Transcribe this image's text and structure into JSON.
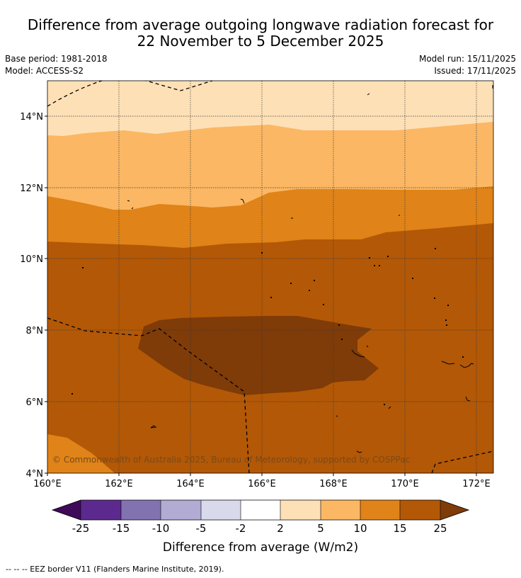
{
  "title_line1": "Difference from average outgoing longwave radiation forecast for",
  "title_line2": "22 November to 5 December 2025",
  "base_period": "Base period: 1981-2018",
  "model": "Model: ACCESS-S2",
  "model_run": "Model run: 15/11/2025",
  "issued": "Issued: 17/11/2025",
  "lat_labels": [
    "14°N",
    "12°N",
    "10°N",
    "8°N",
    "6°N",
    "4°N"
  ],
  "lon_labels": [
    "160°E",
    "162°E",
    "164°E",
    "166°E",
    "168°E",
    "170°E",
    "172°E"
  ],
  "copyright": "© Commonwealth of Australia 2025, Bureau of Meteorology, supported by COSPPac",
  "colorbar": {
    "label": "Difference from average (W/m2)",
    "ticks": [
      "-25",
      "-15",
      "-10",
      "-5",
      "-2",
      "2",
      "5",
      "10",
      "15",
      "25"
    ],
    "colors": [
      "#3f0a5a",
      "#5c2a8e",
      "#8273b0",
      "#b2abd3",
      "#d9d9ec",
      "#ffffff",
      "#fee0b6",
      "#fbb763",
      "#e08318",
      "#b35806",
      "#7f3b08"
    ]
  },
  "footer": "--  --  -- EEZ border V11 (Flanders Marine Institute, 2019)."
}
